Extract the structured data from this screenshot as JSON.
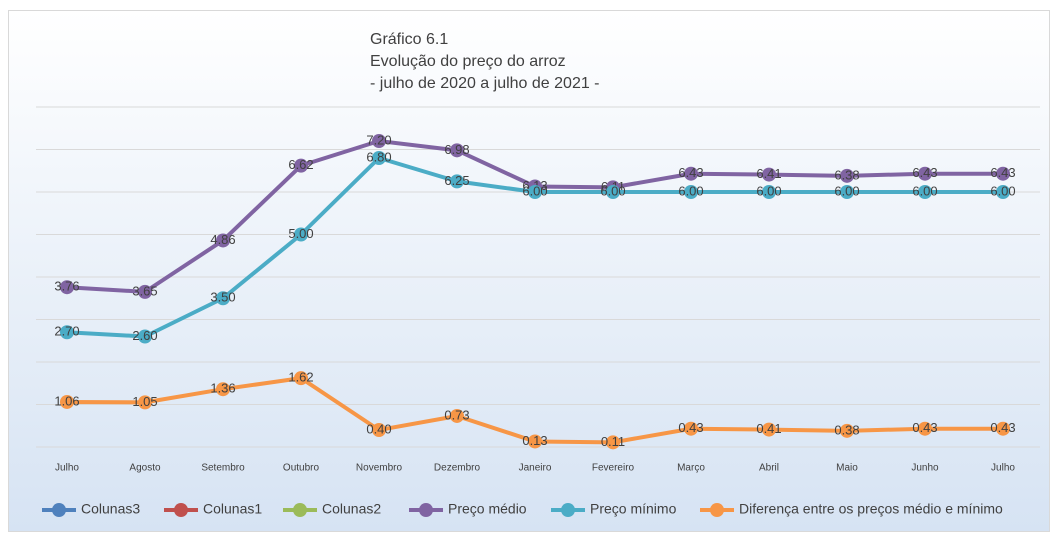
{
  "chart_data": {
    "type": "line",
    "title": [
      "Gráfico 6.1",
      "Evolução do preço do arroz",
      "- julho de 2020 a julho de 2021 -"
    ],
    "categories": [
      "Julho",
      "Agosto",
      "Setembro",
      "Outubro",
      "Novembro",
      "Dezembro",
      "Janeiro",
      "Fevereiro",
      "Março",
      "Abril",
      "Maio",
      "Junho",
      "Julho"
    ],
    "ylim": [
      0,
      8
    ],
    "yticks": [
      0,
      1,
      2,
      3,
      4,
      5,
      6,
      7,
      8
    ],
    "grid": true,
    "legend": "bottom",
    "series": [
      {
        "name": "Colunas3",
        "color": "#4f81bd",
        "values": [
          null,
          null,
          null,
          null,
          null,
          null,
          null,
          null,
          null,
          null,
          null,
          null,
          null
        ]
      },
      {
        "name": "Colunas1",
        "color": "#c0504d",
        "values": [
          null,
          null,
          null,
          null,
          null,
          null,
          null,
          null,
          null,
          null,
          null,
          null,
          null
        ]
      },
      {
        "name": "Colunas2",
        "color": "#9bbb59",
        "values": [
          null,
          null,
          null,
          null,
          null,
          null,
          null,
          null,
          null,
          null,
          null,
          null,
          null
        ]
      },
      {
        "name": "Preço médio",
        "color": "#8064a2",
        "values": [
          3.76,
          3.65,
          4.86,
          6.62,
          7.2,
          6.98,
          6.13,
          6.11,
          6.43,
          6.41,
          6.38,
          6.43,
          6.43
        ],
        "value_labels": [
          "3.76",
          "3.65",
          "4.86",
          "6.62",
          "7.20",
          "6.98",
          "6.13",
          "6.11",
          "6.43",
          "6.41",
          "6.38",
          "6.43",
          "6.43"
        ]
      },
      {
        "name": "Preço mínimo",
        "color": "#4bacc6",
        "values": [
          2.7,
          2.6,
          3.5,
          5,
          6.8,
          6.25,
          6,
          6,
          6,
          6,
          6,
          6,
          6
        ],
        "value_labels": [
          "2.70",
          "2.60",
          "3.50",
          "5.00",
          "6.80",
          "6.25",
          "6.00",
          "6.00",
          "6.00",
          "6.00",
          "6.00",
          "6.00",
          "6.00"
        ]
      },
      {
        "name": "Diferença entre os preços médio e mínimo",
        "color": "#f79646",
        "values": [
          1.06,
          1.05,
          1.36,
          1.62,
          0.4,
          0.73,
          0.13,
          0.11,
          0.43,
          0.41,
          0.38,
          0.43,
          0.43
        ],
        "value_labels": [
          "1.06",
          "1.05",
          "1.36",
          "1.62",
          "0.40",
          "0.73",
          "0.13",
          "0.11",
          "0.43",
          "0.41",
          "0.38",
          "0.43",
          "0.43"
        ]
      }
    ]
  }
}
